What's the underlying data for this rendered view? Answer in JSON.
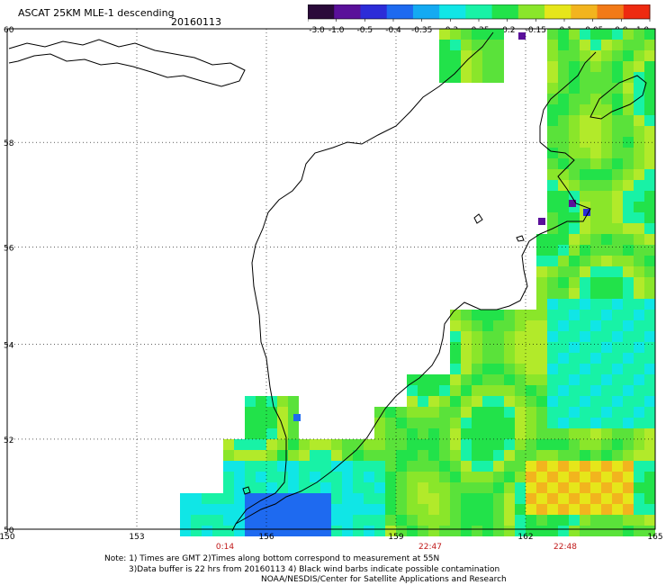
{
  "header": {
    "title": "ASCAT 25KM MLE-1 descending",
    "date": "20160113"
  },
  "colorbar": {
    "labels": [
      "-3.0",
      "-1.0",
      "-0.5",
      "-0.4",
      "-0.35",
      "-0.3",
      "-0.25",
      "-0.2",
      "-0.15",
      "-0.1",
      "-0.05",
      "0.0",
      "1.0"
    ],
    "colors": [
      "#2a0a3a",
      "#5a109a",
      "#2c2cd8",
      "#1e6af0",
      "#14aaf2",
      "#10e6e6",
      "#18f2a6",
      "#22e24a",
      "#8ae62a",
      "#e6e61a",
      "#f2b41e",
      "#f27a18",
      "#ee2a10"
    ]
  },
  "axes": {
    "x_ticks": [
      "150",
      "153",
      "156",
      "159",
      "162",
      "165"
    ],
    "y_ticks": [
      "60",
      "58",
      "56",
      "54",
      "52",
      "50"
    ],
    "times": [
      "0:14",
      "22:47",
      "22:48"
    ]
  },
  "notes": {
    "line1": "Note: 1) Times are GMT 2)Times along bottom correspond to measurement at 55N",
    "line2": "3)Data buffer is 22 hrs from 20160113 4) Black wind barbs indicate possible contamination",
    "line3": "NOAA/NESDIS/Center for Satellite Applications and Research"
  },
  "legend_colors": {
    "high": "#ee2a10",
    "low": "#2a0a3a"
  }
}
